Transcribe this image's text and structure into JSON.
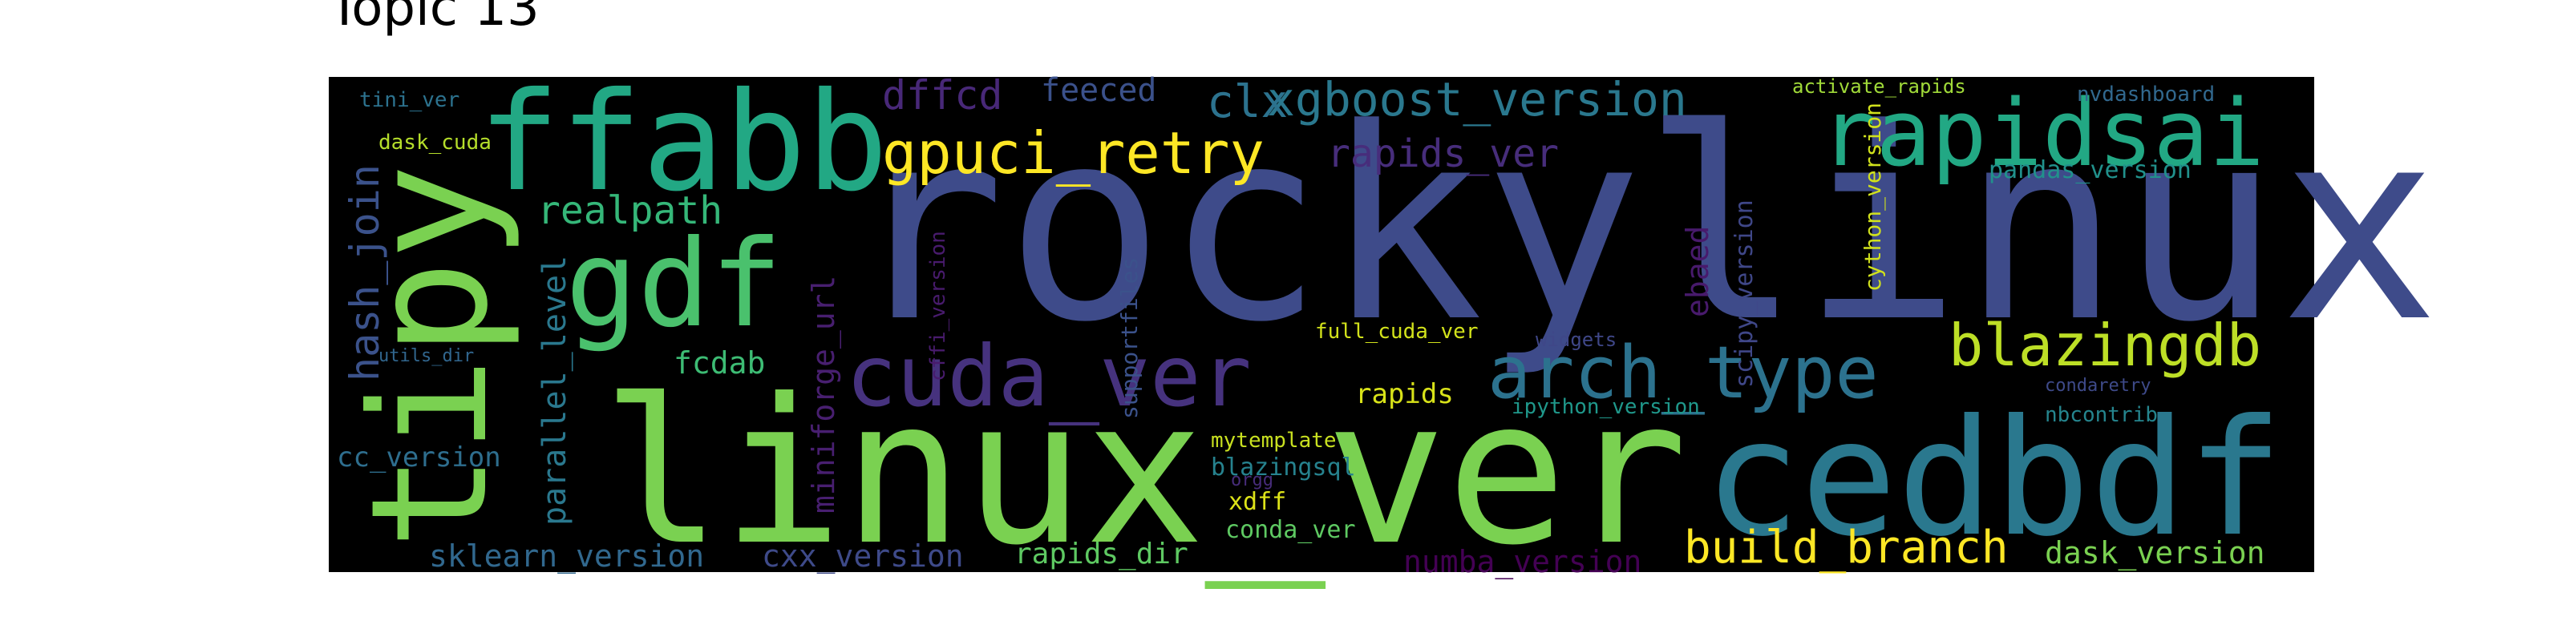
{
  "figure": {
    "title": "Topic 13",
    "background": "#000000",
    "page_background": "#ffffff",
    "colormap": "viridis"
  },
  "words": [
    {
      "text": "rockylinux",
      "color": "#3e4b8a"
    },
    {
      "text": "linux_ver",
      "color": "#7ad151"
    },
    {
      "text": "tipy",
      "color": "#7ad151"
    },
    {
      "text": "ffabb",
      "color": "#22a884"
    },
    {
      "text": "cedbdf",
      "color": "#2a788e"
    },
    {
      "text": "rapidsai",
      "color": "#22a884"
    },
    {
      "text": "gdf",
      "color": "#4ac16d"
    },
    {
      "text": "cuda_ver",
      "color": "#46327e"
    },
    {
      "text": "arch_type",
      "color": "#2c728e"
    },
    {
      "text": "blazingdb",
      "color": "#bddf26"
    },
    {
      "text": "gpuci_retry",
      "color": "#fde725"
    },
    {
      "text": "xgboost_version",
      "color": "#2a788e"
    },
    {
      "text": "build_branch",
      "color": "#fde725"
    },
    {
      "text": "clx",
      "color": "#2c728e"
    },
    {
      "text": "dffcd",
      "color": "#482878"
    },
    {
      "text": "feeced",
      "color": "#3b518b"
    },
    {
      "text": "rapids_ver",
      "color": "#472d7b"
    },
    {
      "text": "realpath",
      "color": "#35b779"
    },
    {
      "text": "hash_join",
      "color": "#3b528b"
    },
    {
      "text": "parallel_level",
      "color": "#2a788e"
    },
    {
      "text": "miniforge_url",
      "color": "#481f70"
    },
    {
      "text": "sklearn_version",
      "color": "#31688e"
    },
    {
      "text": "cxx_version",
      "color": "#3e4a89"
    },
    {
      "text": "rapids_dir",
      "color": "#5ec962"
    },
    {
      "text": "numba_version",
      "color": "#440154"
    },
    {
      "text": "dask_version",
      "color": "#7ad151"
    },
    {
      "text": "pandas_version",
      "color": "#21918c"
    },
    {
      "text": "fcdab",
      "color": "#3dbc74"
    },
    {
      "text": "rapids",
      "color": "#d8e219"
    },
    {
      "text": "cc_version",
      "color": "#2e6e8e"
    },
    {
      "text": "ebaed",
      "color": "#481a6c"
    },
    {
      "text": "scipy_version",
      "color": "#3f4788"
    },
    {
      "text": "cython_version",
      "color": "#d0e11c"
    },
    {
      "text": "supportfiles",
      "color": "#3b528b"
    },
    {
      "text": "cffi_version",
      "color": "#481b6d"
    },
    {
      "text": "full_cuda_ver",
      "color": "#d2e21b"
    },
    {
      "text": "widgets",
      "color": "#3f4788"
    },
    {
      "text": "ipython_version",
      "color": "#1f988b"
    },
    {
      "text": "mytemplate",
      "color": "#c8e020"
    },
    {
      "text": "blazingsql",
      "color": "#26828e"
    },
    {
      "text": "orgg",
      "color": "#472c7a"
    },
    {
      "text": "xdff",
      "color": "#dde318"
    },
    {
      "text": "conda_ver",
      "color": "#5ec962"
    },
    {
      "text": "tini_ver",
      "color": "#2c728e"
    },
    {
      "text": "dask_cuda",
      "color": "#b5de2b"
    },
    {
      "text": "utils_dir",
      "color": "#31668e"
    },
    {
      "text": "activate_rapids",
      "color": "#a0da39"
    },
    {
      "text": "nvdashboard",
      "color": "#31688e"
    },
    {
      "text": "condaretry",
      "color": "#3e4a89"
    },
    {
      "text": "nbcontrib",
      "color": "#25858e"
    }
  ]
}
